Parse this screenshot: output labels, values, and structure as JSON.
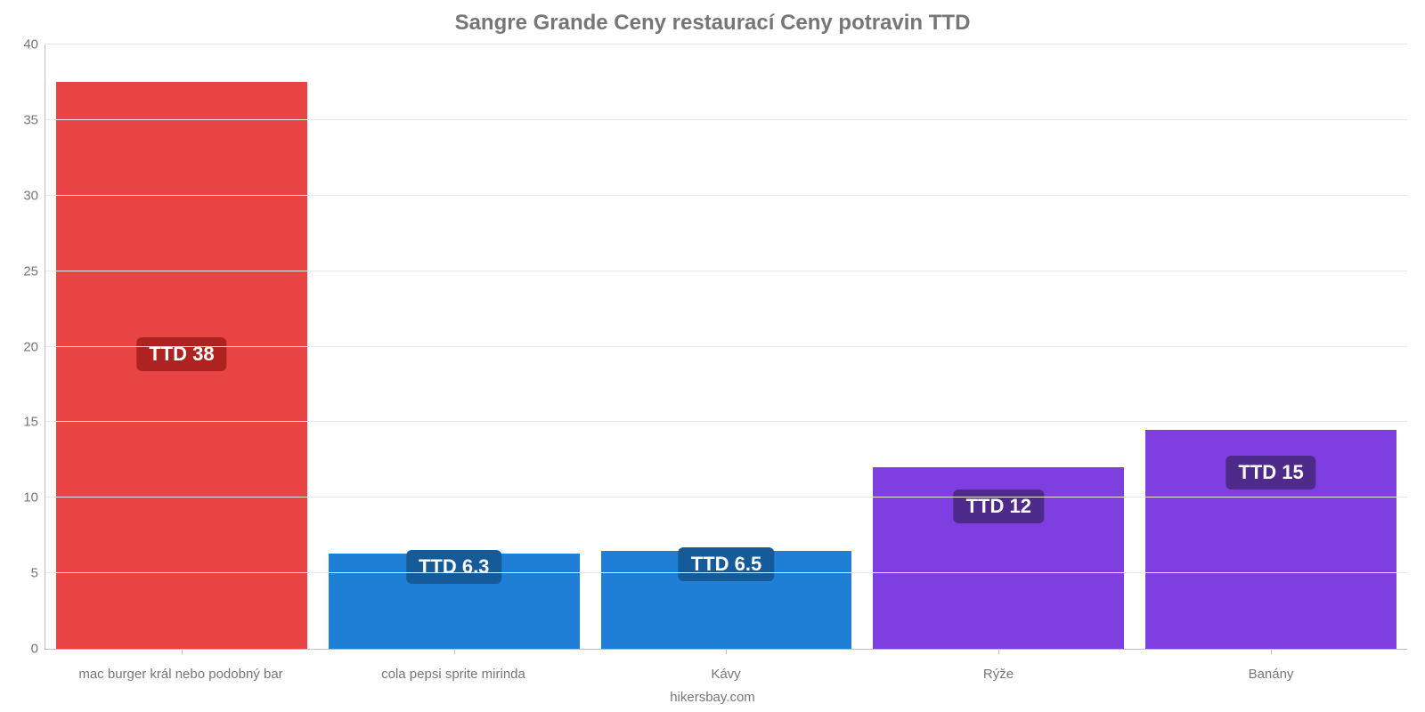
{
  "chart": {
    "type": "bar",
    "title": "Sangre Grande Ceny restaurací Ceny potravin TTD",
    "title_fontsize": 24,
    "title_color": "#767676",
    "background_color": "#ffffff",
    "grid_color": "#e8e8e8",
    "axis_color": "#bdbdbd",
    "label_color": "#767676",
    "label_fontsize": 15,
    "ylim": [
      0,
      40
    ],
    "ytick_step": 5,
    "yticks": [
      0,
      5,
      10,
      15,
      20,
      25,
      30,
      35,
      40
    ],
    "attribution": "hikersbay.com",
    "badge_fontsize": 22,
    "badge_text_color": "#ffffff",
    "bars": [
      {
        "category": "mac burger král nebo podobný bar",
        "value": 37.5,
        "label": "TTD 38",
        "bar_color": "#e84444",
        "badge_color": "#ae2222"
      },
      {
        "category": "cola pepsi sprite mirinda",
        "value": 6.3,
        "label": "TTD 6.3",
        "bar_color": "#1f7fd6",
        "badge_color": "#155a99"
      },
      {
        "category": "Kávy",
        "value": 6.5,
        "label": "TTD 6.5",
        "bar_color": "#1f7fd6",
        "badge_color": "#155a99"
      },
      {
        "category": "Rýže",
        "value": 12,
        "label": "TTD 12",
        "bar_color": "#7e3ee0",
        "badge_color": "#4e2a8a"
      },
      {
        "category": "Banány",
        "value": 14.5,
        "label": "TTD 15",
        "bar_color": "#7e3ee0",
        "badge_color": "#4e2a8a"
      }
    ]
  }
}
